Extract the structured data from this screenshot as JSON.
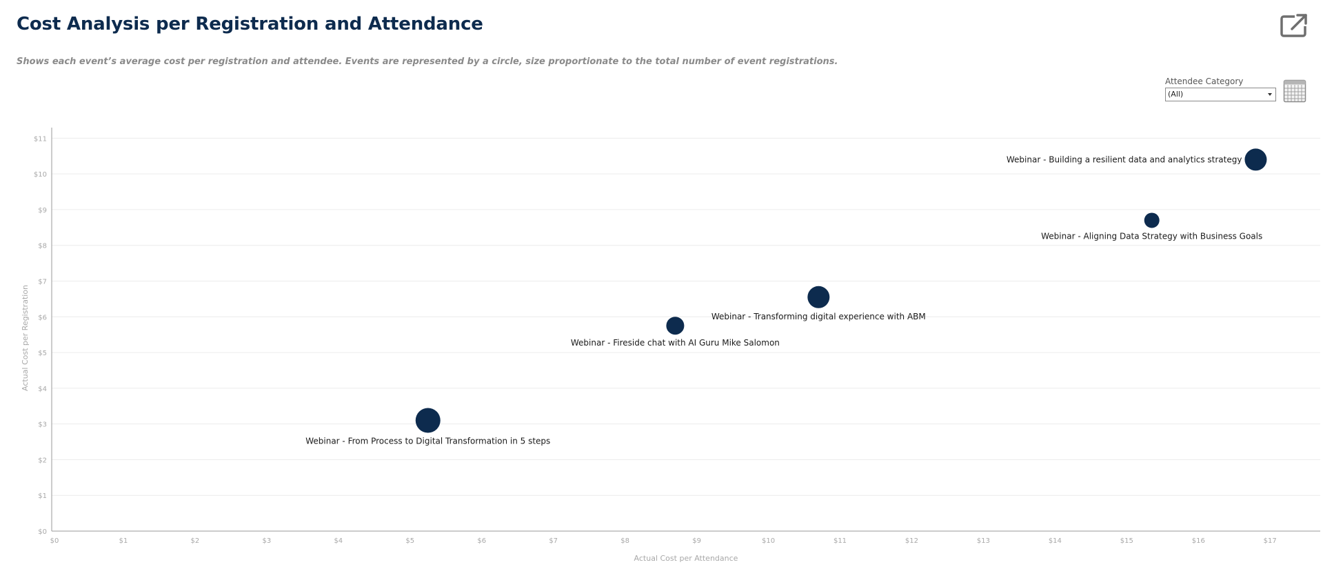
{
  "header": {
    "title": "Cost Analysis per Registration and Attendance",
    "subtitle": "Shows each event’s average cost per registration and attendee. Events are represented by a circle, size proportionate to the total number of event registrations."
  },
  "toolbar": {
    "export_icon": "export-icon",
    "calendar_icon": "calendar-icon"
  },
  "filter": {
    "label": "Attendee Category",
    "selected": "(All)"
  },
  "colors": {
    "bubble": "#0d2b4e",
    "title": "#0d2b4e",
    "grid": "#ececec",
    "axis": "#999999"
  },
  "chart_data": {
    "type": "scatter",
    "xlabel": "Actual Cost per Attendance",
    "ylabel": "Actual Cost per Registration",
    "xlim": [
      0,
      17.7
    ],
    "ylim": [
      0,
      11.2
    ],
    "x_ticks": [
      "$0",
      "$1",
      "$2",
      "$3",
      "$4",
      "$5",
      "$6",
      "$7",
      "$8",
      "$9",
      "$10",
      "$11",
      "$12",
      "$13",
      "$14",
      "$15",
      "$16",
      "$17"
    ],
    "y_ticks": [
      "$0",
      "$1",
      "$2",
      "$3",
      "$4",
      "$5",
      "$6",
      "$7",
      "$8",
      "$9",
      "$10",
      "$11"
    ],
    "grid": true,
    "points": [
      {
        "label": "Webinar - Building a resilient data and analytics strategy",
        "x": 16.8,
        "y": 10.4,
        "size": 16,
        "label_pos": "left"
      },
      {
        "label": "Webinar - Aligning Data Strategy with Business Goals",
        "x": 15.35,
        "y": 8.7,
        "size": 11,
        "label_pos": "below"
      },
      {
        "label": "Webinar - Transforming digital experience with ABM",
        "x": 10.7,
        "y": 6.55,
        "size": 16,
        "label_pos": "below"
      },
      {
        "label": "Webinar - Fireside chat with AI Guru Mike Salomon",
        "x": 8.7,
        "y": 5.75,
        "size": 13,
        "label_pos": "below"
      },
      {
        "label": "Webinar - From Process to Digital Transformation in 5 steps",
        "x": 5.25,
        "y": 3.1,
        "size": 18,
        "label_pos": "below"
      }
    ]
  }
}
